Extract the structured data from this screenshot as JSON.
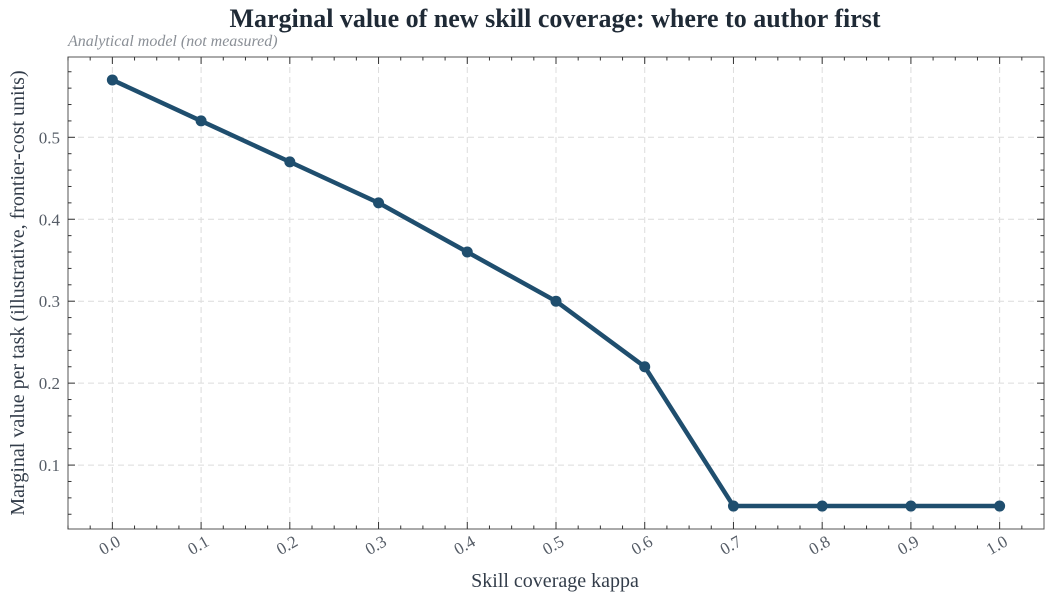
{
  "chart_data": {
    "type": "line",
    "title": "Marginal value of new skill coverage: where to author first",
    "subtitle": "Analytical model (not measured)",
    "xlabel": "Skill coverage kappa",
    "ylabel": "Marginal value per task (illustrative, frontier-cost units)",
    "x": [
      0.0,
      0.1,
      0.2,
      0.3,
      0.4,
      0.5,
      0.6,
      0.7,
      0.8,
      0.9,
      1.0
    ],
    "x_tick_labels": [
      "0.0",
      "0.1",
      "0.2",
      "0.3",
      "0.4",
      "0.5",
      "0.6",
      "0.7",
      "0.8",
      "0.9",
      "1.0"
    ],
    "y_ticks": [
      0.1,
      0.2,
      0.3,
      0.4,
      0.5
    ],
    "y_tick_labels": [
      "0.1",
      "0.2",
      "0.3",
      "0.4",
      "0.5"
    ],
    "xlim": [
      -0.05,
      1.05
    ],
    "ylim": [
      0.022,
      0.598
    ],
    "grid": true,
    "series": [
      {
        "values": [
          0.57,
          0.52,
          0.47,
          0.42,
          0.36,
          0.3,
          0.22,
          0.05,
          0.05,
          0.05,
          0.05
        ],
        "color": "#1f4e6e"
      }
    ]
  }
}
